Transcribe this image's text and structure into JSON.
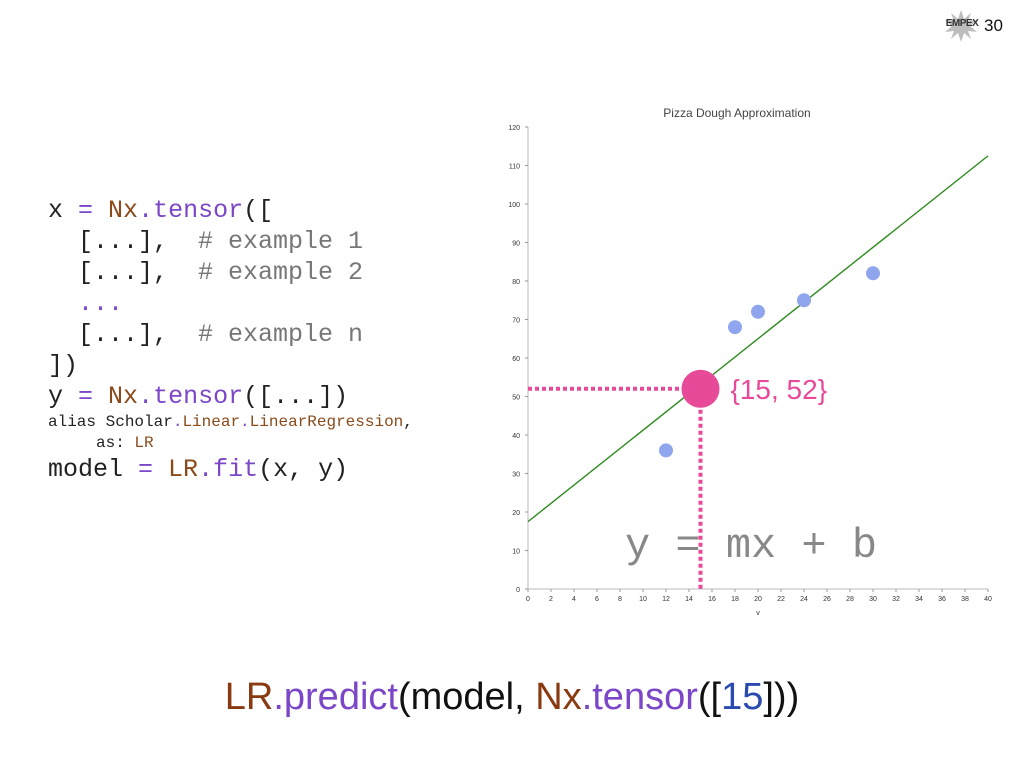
{
  "slide": {
    "brand": "EMPEX",
    "page_number": "30"
  },
  "code": {
    "lines": [
      {
        "size": "big",
        "tokens": [
          [
            "x ",
            ""
          ],
          [
            "=",
            "o"
          ],
          [
            " ",
            ""
          ],
          [
            "Nx",
            "m"
          ],
          [
            ".",
            "d"
          ],
          [
            "tensor",
            "f"
          ],
          [
            "([",
            ""
          ]
        ]
      },
      {
        "size": "big",
        "tokens": [
          [
            "  [...],  ",
            ""
          ],
          [
            "# example 1",
            "c"
          ]
        ]
      },
      {
        "size": "big",
        "tokens": [
          [
            "  [...],  ",
            ""
          ],
          [
            "# example 2",
            "c"
          ]
        ]
      },
      {
        "size": "big",
        "tokens": [
          [
            "  ...",
            "d"
          ]
        ]
      },
      {
        "size": "big",
        "tokens": [
          [
            "  [...],  ",
            ""
          ],
          [
            "# example n",
            "c"
          ]
        ]
      },
      {
        "size": "big",
        "tokens": [
          [
            "])",
            ""
          ]
        ]
      },
      {
        "size": "big",
        "tokens": [
          [
            "y ",
            ""
          ],
          [
            "=",
            "o"
          ],
          [
            " ",
            ""
          ],
          [
            "Nx",
            "m"
          ],
          [
            ".",
            "d"
          ],
          [
            "tensor",
            "f"
          ],
          [
            "([...])",
            ""
          ]
        ]
      },
      {
        "size": "small",
        "tokens": [
          [
            "alias Scholar",
            ""
          ],
          [
            ".",
            "d"
          ],
          [
            "Linear",
            "m"
          ],
          [
            ".",
            "d"
          ],
          [
            "LinearRegression",
            "m"
          ],
          [
            ",",
            ""
          ]
        ]
      },
      {
        "size": "small",
        "tokens": [
          [
            "     as: ",
            ""
          ],
          [
            "LR",
            "m"
          ]
        ]
      },
      {
        "size": "big",
        "tokens": [
          [
            "model ",
            ""
          ],
          [
            "=",
            "o"
          ],
          [
            " ",
            ""
          ],
          [
            "LR",
            "m"
          ],
          [
            ".",
            "d"
          ],
          [
            "fit",
            "f"
          ],
          [
            "(x, y)",
            ""
          ]
        ]
      }
    ]
  },
  "chart_data": {
    "type": "scatter",
    "title": "Pizza Dough Approximation",
    "xlabel": "v",
    "ylabel": "",
    "xlim": [
      0,
      40
    ],
    "ylim": [
      0,
      120
    ],
    "x_ticks": [
      0,
      2,
      4,
      6,
      8,
      10,
      12,
      14,
      16,
      18,
      20,
      22,
      24,
      26,
      28,
      30,
      32,
      34,
      36,
      38,
      40
    ],
    "y_ticks": [
      0,
      10,
      20,
      30,
      40,
      50,
      60,
      70,
      80,
      90,
      100,
      110,
      120
    ],
    "points": [
      {
        "x": 12,
        "y": 36
      },
      {
        "x": 18,
        "y": 68
      },
      {
        "x": 20,
        "y": 72
      },
      {
        "x": 24,
        "y": 75
      },
      {
        "x": 30,
        "y": 82
      }
    ],
    "fit_line": {
      "x": [
        0,
        40
      ],
      "y": [
        17.5,
        112.5
      ],
      "color": "#2e8b1f"
    },
    "highlight": {
      "x": 15,
      "y": 52,
      "label": "{15, 52}",
      "color": "#e84a9a"
    },
    "annotation": "y = mx + b",
    "point_color": "#8fa6ee"
  },
  "bottom": {
    "tokens": [
      [
        "LR",
        "m"
      ],
      [
        ".",
        "f"
      ],
      [
        "predict",
        "f"
      ],
      [
        "(model, ",
        ""
      ],
      [
        "Nx",
        "m"
      ],
      [
        ".",
        "f"
      ],
      [
        "tensor",
        "f"
      ],
      [
        "([",
        ""
      ],
      [
        "15",
        "n"
      ],
      [
        "]))",
        ""
      ]
    ]
  }
}
